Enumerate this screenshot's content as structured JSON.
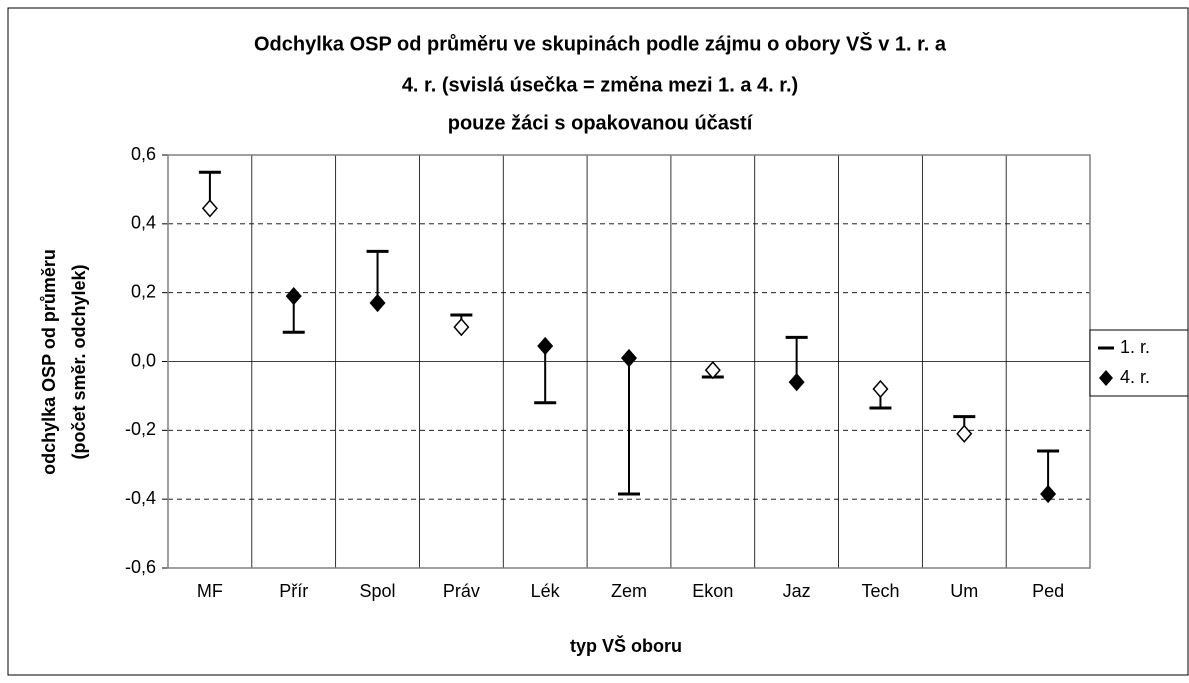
{
  "chart_data": {
    "type": "range-dot",
    "title": [
      "Odchylka OSP od průměru ve skupinách podle zájmu o obory VŠ v 1. r. a",
      "4. r. (svislá úsečka = změna mezi 1. a 4. r.)",
      "pouze žáci s opakovanou účastí"
    ],
    "x_label": "typ VŠ oboru",
    "y_label": [
      "odchylka OSP od průměru",
      "(počet směr. odchylek)"
    ],
    "categories": [
      "MF",
      "Přír",
      "Spol",
      "Práv",
      "Lék",
      "Zem",
      "Ekon",
      "Jaz",
      "Tech",
      "Um",
      "Ped"
    ],
    "series": [
      {
        "name": "1. r.",
        "color": "#000000",
        "marker": "dash",
        "values": [
          0.55,
          0.085,
          0.32,
          0.135,
          -0.12,
          -0.385,
          -0.045,
          0.07,
          -0.135,
          -0.16,
          -0.26
        ]
      },
      {
        "name": "4. r.",
        "color": "#000000",
        "marker": "diamond",
        "hollow": [
          true,
          false,
          false,
          true,
          false,
          false,
          true,
          false,
          true,
          true,
          false
        ],
        "values": [
          0.445,
          0.19,
          0.17,
          0.1,
          0.045,
          0.01,
          -0.025,
          -0.06,
          -0.08,
          -0.21,
          -0.385
        ]
      }
    ],
    "ylim": [
      -0.6,
      0.6
    ],
    "yticks": [
      {
        "value": -0.6,
        "label": "-0,6"
      },
      {
        "value": -0.4,
        "label": "-0,4"
      },
      {
        "value": -0.2,
        "label": "-0,2"
      },
      {
        "value": 0,
        "label": "0,0"
      },
      {
        "value": 0.2,
        "label": "0,2"
      },
      {
        "value": 0.4,
        "label": "0,4"
      },
      {
        "value": 0.6,
        "label": "0,6"
      }
    ],
    "grid": true,
    "legend": "right"
  }
}
